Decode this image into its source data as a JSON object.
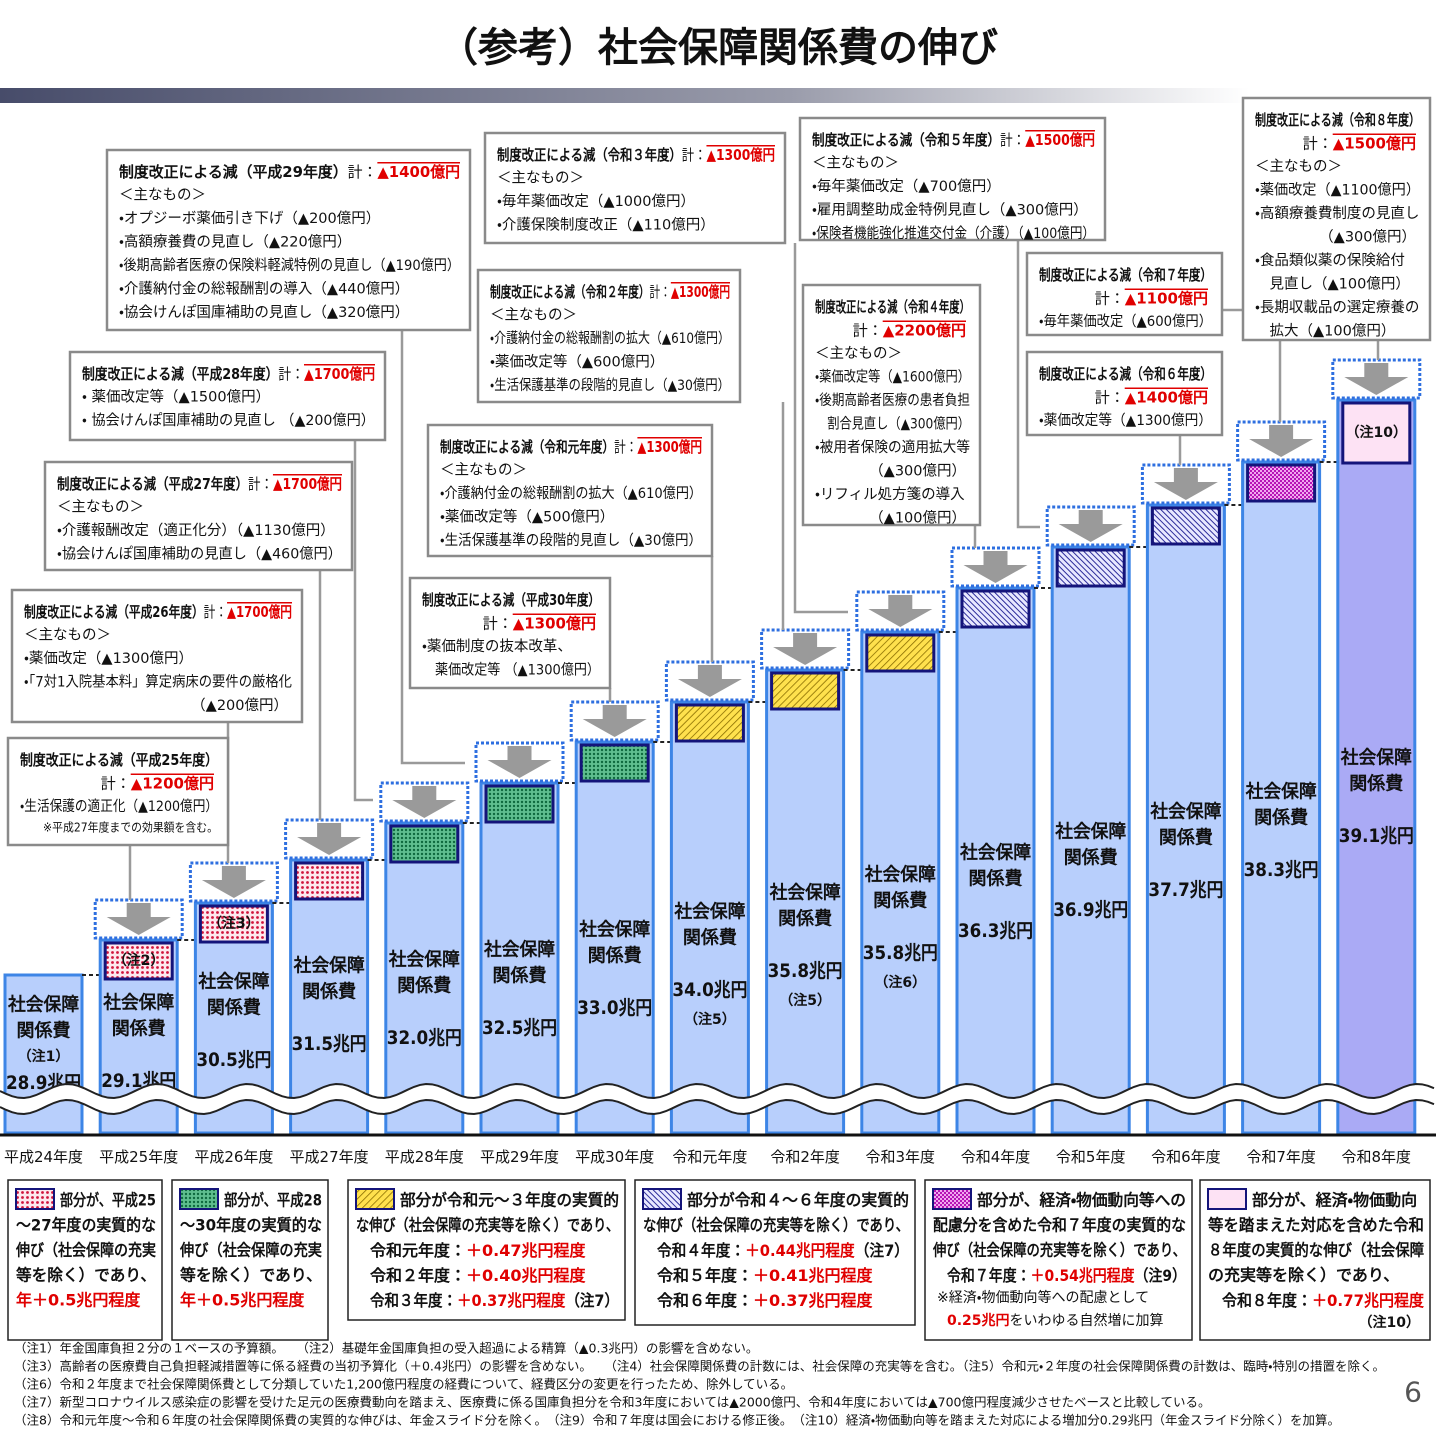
{
  "title": "（参考）社会保障関係費の伸び",
  "page_number": "6",
  "years": [
    "平成24年度",
    "平成25年度",
    "平成26年度",
    "平成27年度",
    "平成28年度",
    "平成29年度",
    "平成30年度",
    "令和元年度",
    "令和2年度",
    "令和3年度",
    "令和4年度",
    "令和5年度",
    "令和6年度",
    "令和7年度",
    "令和8年度"
  ],
  "bars": [
    {
      "label": [
        "社会保障",
        "関係費"
      ],
      "note": "（注1）",
      "amount": "28.9兆円"
    },
    {
      "label": [
        "社会保障",
        "関係費"
      ],
      "amount": "29.1兆円",
      "inset": "（注2）"
    },
    {
      "label": [
        "社会保障",
        "関係費"
      ],
      "amount": "30.5兆円",
      "inset": "（注3）"
    },
    {
      "label": [
        "社会保障",
        "関係費"
      ],
      "amount": "31.5兆円"
    },
    {
      "label": [
        "社会保障",
        "関係費"
      ],
      "amount": "32.0兆円"
    },
    {
      "label": [
        "社会保障",
        "関係費"
      ],
      "amount": "32.5兆円"
    },
    {
      "label": [
        "社会保障",
        "関係費"
      ],
      "amount": "33.0兆円"
    },
    {
      "label": [
        "社会保障",
        "関係費"
      ],
      "amount": "34.0兆円",
      "note_after": "（注5）"
    },
    {
      "label": [
        "社会保障",
        "関係費"
      ],
      "amount": "35.8兆円",
      "note_after": "（注5）"
    },
    {
      "label": [
        "社会保障",
        "関係費"
      ],
      "amount": "35.8兆円",
      "note_after": "（注6）"
    },
    {
      "label": [
        "社会保障",
        "関係費"
      ],
      "amount": "36.3兆円"
    },
    {
      "label": [
        "社会保障",
        "関係費"
      ],
      "amount": "36.9兆円"
    },
    {
      "label": [
        "社会保障",
        "関係費"
      ],
      "amount": "37.7兆円"
    },
    {
      "label": [
        "社会保障",
        "関係費"
      ],
      "amount": "38.3兆円"
    },
    {
      "label": [
        "社会保障",
        "関係費"
      ],
      "amount": "39.1兆円",
      "inset": "（注10）"
    }
  ],
  "reductions": [
    {
      "title": "制度改正による減（平成25年度）",
      "total_label": "計：",
      "total": "▲1200億円",
      "lines": [
        "・生活保護の適正化（▲1200億円）",
        "※平成27年度までの効果額を含む。"
      ]
    },
    {
      "title": "制度改正による減（平成26年度）",
      "total_label": "計：",
      "total": "▲1700億円",
      "lines": [
        "＜主なもの＞",
        "・薬価改定（▲1300億円）",
        "・「7対1入院基本料」算定病床の要件の厳格化",
        "（▲200億円）"
      ]
    },
    {
      "title": "制度改正による減（平成27年度）",
      "total_label": "計：",
      "total": "▲1700億円",
      "lines": [
        "＜主なもの＞",
        "・介護報酬改定（適正化分）（▲1130億円）",
        "・協会けんぽ国庫補助の見直し（▲460億円）"
      ]
    },
    {
      "title": "制度改正による減（平成28年度）",
      "total_label": "計：",
      "total": "▲1700億円",
      "lines": [
        "・ 薬価改定等（▲1500億円）",
        "・ 協会けんぽ国庫補助の見直し （▲200億円）"
      ]
    },
    {
      "title": "制度改正による減（平成29年度）",
      "total_label": "計：",
      "total": "▲1400億円",
      "lines": [
        "＜主なもの＞",
        "・オプジーボ薬価引き下げ（▲200億円）",
        "・高額療養費の見直し（▲220億円）",
        "・後期高齢者医療の保険料軽減特例の見直し（▲190億円）",
        "・介護納付金の総報酬割の導入（▲440億円）",
        "・協会けんぽ国庫補助の見直し（▲320億円）"
      ]
    },
    {
      "title": "制度改正による減（平成30年度）",
      "total_label": "計：",
      "total": "▲1300億円",
      "lines": [
        "・薬価制度の抜本改革、",
        "　薬価改定等 （▲1300億円）"
      ]
    },
    {
      "title": "制度改正による減（令和元年度）",
      "total_label": "計：",
      "total": "▲1300億円",
      "lines": [
        "＜主なもの＞",
        "・介護納付金の総報酬割の拡大（▲610億円）",
        "・薬価改定等（▲500億円）",
        "・生活保護基準の段階的見直し（▲30億円）"
      ]
    },
    {
      "title": "制度改正による減（令和２年度）",
      "total_label": "計：",
      "total": "▲1300億円",
      "lines": [
        "＜主なもの＞",
        "・介護納付金の総報酬割の拡大（▲610億円）",
        "・薬価改定等（▲600億円）",
        "・生活保護基準の段階的見直し（▲30億円）"
      ]
    },
    {
      "title": "制度改正による減（令和３年度）",
      "total_label": "計：",
      "total": "▲1300億円",
      "lines": [
        "＜主なもの＞",
        "・毎年薬価改定（▲1000億円）",
        "・介護保険制度改正（▲110億円）"
      ]
    },
    {
      "title": "制度改正による減（令和４年度）",
      "total_label": "計：",
      "total": "▲2200億円",
      "lines": [
        "＜主なもの＞",
        "・薬価改定等（▲1600億円）",
        "・後期高齢者医療の患者負担",
        "　割合見直し（▲300億円）",
        "・被用者保険の適用拡大等",
        "（▲300億円）",
        "・リフィル処方箋の導入",
        "（▲100億円）"
      ]
    },
    {
      "title": "制度改正による減（令和５年度）",
      "total_label": "計：",
      "total": "▲1500億円",
      "lines": [
        "＜主なもの＞",
        "・毎年薬価改定（▲700億円）",
        "・雇用調整助成金特例見直し（▲300億円）",
        "・保険者機能強化推進交付金（介護）（▲100億円）"
      ]
    },
    {
      "title": "制度改正による減（令和６年度）",
      "total_label": "計：",
      "total": "▲1400億円",
      "lines": [
        "・薬価改定等（▲1300億円）"
      ]
    },
    {
      "title": "制度改正による減（令和７年度）",
      "total_label": "計：",
      "total": "▲1100億円",
      "lines": [
        "・毎年薬価改定（▲600億円）"
      ]
    },
    {
      "title": "制度改正による減（令和８年度）",
      "total_label": "計：",
      "total": "▲1500億円",
      "lines": [
        "＜主なもの＞",
        "・薬価改定（▲1100億円）",
        "・高額療養費制度の見直し",
        "（▲300億円）",
        "・食品類似薬の保険給付",
        "　見直し（▲100億円）",
        "・長期収載品の選定療養の",
        "　拡大（▲100億円）"
      ]
    }
  ],
  "legend": [
    {
      "lines": [
        "部分が、平成25",
        "～27年度の実質的な",
        "伸び（社会保障の充実",
        "等を除く）であり、"
      ],
      "highlight": "年＋0.5兆円程度"
    },
    {
      "lines": [
        "部分が、平成28",
        "～30年度の実質的な",
        "伸び（社会保障の充実",
        "等を除く）であり、"
      ],
      "highlight": "年＋0.5兆円程度"
    },
    {
      "lines": [
        "部分が令和元～３年度の実質的",
        "な伸び（社会保障の充実等を除く）であり、"
      ],
      "rows": [
        {
          "label": "令和元年度：",
          "value": "＋0.47兆円程度"
        },
        {
          "label": "令和２年度：",
          "value": "＋0.40兆円程度"
        },
        {
          "label": "令和３年度：",
          "value": "＋0.37兆円程度",
          "note": "（注7）"
        }
      ]
    },
    {
      "lines": [
        "部分が令和４～６年度の実質的",
        "な伸び（社会保障の充実等を除く）であり、"
      ],
      "rows": [
        {
          "label": "令和４年度：",
          "value": "＋0.44兆円程度",
          "note": "（注7）"
        },
        {
          "label": "令和５年度：",
          "value": "＋0.41兆円程度"
        },
        {
          "label": "令和６年度：",
          "value": "＋0.37兆円程度"
        }
      ]
    },
    {
      "lines": [
        "部分が、経済・物価動向等への",
        "配慮分を含めた令和７年度の実質的な",
        "伸び（社会保障の充実等を除く）であり、"
      ],
      "rows": [
        {
          "label": "令和７年度：",
          "value": "＋0.54兆円程度",
          "note": "（注9）"
        }
      ],
      "remark": {
        "text": "※経済・物価動向等への配慮として",
        "value": "0.25兆円",
        "tail": "をいわゆる自然増に加算"
      }
    },
    {
      "lines": [
        "部分が、経済・物価動向",
        "等を踏まえた対応を含めた令和",
        "８年度の実質的な伸び（社会保障",
        "の充実等を除く）であり、"
      ],
      "rows": [
        {
          "label": "令和８年度：",
          "value": "＋0.77兆円程度"
        }
      ],
      "note_below": "（注10）"
    }
  ],
  "notes": [
    "（注1）年金国庫負担２分の１ベースの予算額。　　（注2）基礎年金国庫負担の受入超過による精算（▲0.3兆円）の影響を含めない。",
    "（注3）高齢者の医療費自己負担軽減措置等に係る経費の当初予算化（＋0.4兆円）の影響を含めない。　　（注4）社会保障関係費の計数には、社会保障の充実等を含む。（注5）令和元・２年度の社会保障関係費の計数は、臨時・特別の措置を除く。",
    "（注6）令和２年度まで社会保障関係費として分類していた1,200億円程度の経費について、経費区分の変更を行ったため、除外している。",
    "（注7）新型コロナウイルス感染症の影響を受けた足元の医療費動向を踏まえ、医療費に係る国庫負担分を令和3年度においては▲2000億円、令和4年度においては▲700億円程度減少させたベースと比較している。",
    "（注8）令和元年度～令和６年度の社会保障関係費の実質的な伸びは、年金スライド分を除く。　（注9）令和７年度は国会における修正後。　（注10）経済・物価動向等を踏まえた対応による増加分0.29兆円（年金スライド分除く）を加算。"
  ]
}
